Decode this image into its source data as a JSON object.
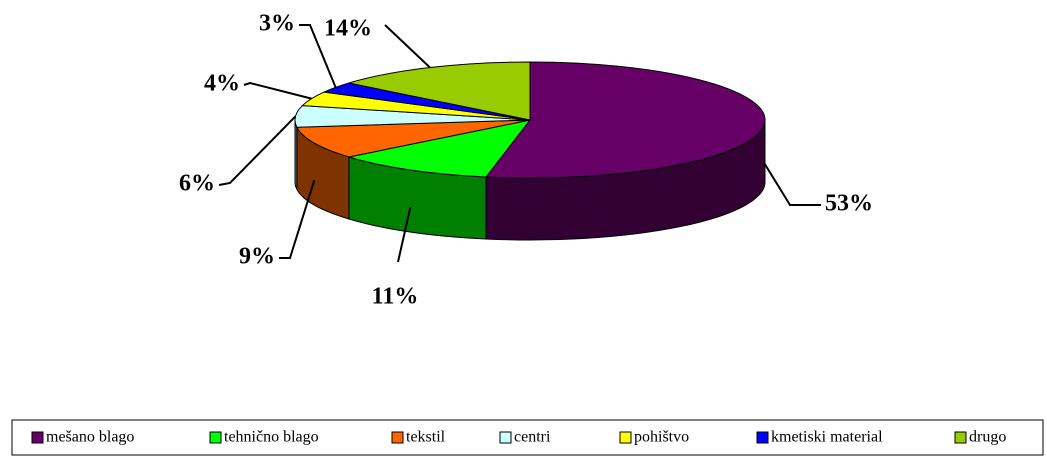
{
  "chart_data": {
    "type": "pie",
    "categories": [
      "mešano blago",
      "tehnično blago",
      "tekstil",
      "centri",
      "pohištvo",
      "kmetiski material",
      "drugo"
    ],
    "values": [
      53,
      11,
      9,
      6,
      4,
      3,
      14
    ],
    "value_labels": [
      "53%",
      "11%",
      "9%",
      "6%",
      "4%",
      "3%",
      "14%"
    ],
    "colors": [
      "#660066",
      "#00ff00",
      "#ff6600",
      "#ccffff",
      "#ffff00",
      "#0000ff",
      "#99cc00"
    ],
    "legend": "bottom"
  }
}
